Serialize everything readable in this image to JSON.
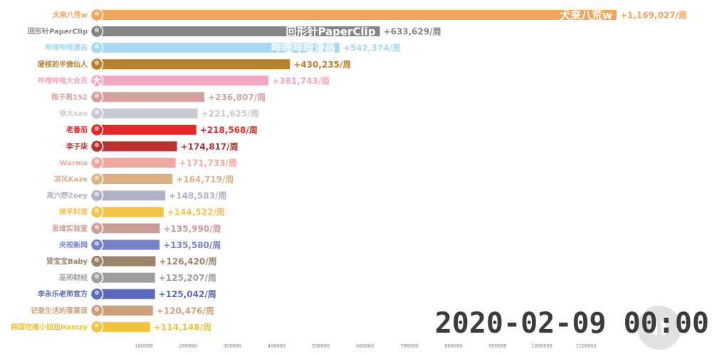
{
  "chart_data": {
    "type": "bar",
    "orientation": "horizontal",
    "categories": [
      "犬来八荒w",
      "回形针PaperClip",
      "哔哩哔哩漫画",
      "硬核的半佛仙人",
      "哔哩哔哩大会员",
      "瓶子君152",
      "徐大sao",
      "老番茄",
      "李子柒",
      "Warma",
      "凉风Kaze",
      "周六野Zoey",
      "绵羊料理",
      "思维实验室",
      "央视新闻",
      "贤宝宝Baby",
      "巫师财经",
      "李永乐老师官方",
      "记录生活的蛋黄派",
      "韩国吃播小姐姐Hamzy"
    ],
    "values": [
      1169027,
      633629,
      542374,
      430235,
      381743,
      236807,
      221625,
      218568,
      174817,
      171733,
      164719,
      148583,
      144522,
      135990,
      135580,
      126420,
      125207,
      125042,
      120476,
      114148
    ],
    "value_labels": [
      "+1,169,027/周",
      "+633,629/周",
      "+542,374/周",
      "+430,235/周",
      "+381,743/周",
      "+236,807/周",
      "+221,625/周",
      "+218,568/周",
      "+174,817/周",
      "+171,733/周",
      "+164,719/周",
      "+148,583/周",
      "+144,522/周",
      "+135,990/周",
      "+135,580/周",
      "+126,420/周",
      "+125,207/周",
      "+125,042/周",
      "+120,476/周",
      "+114,148/周"
    ],
    "bar_inner_labels": [
      "犬来八荒w",
      "回形针PaperClip",
      "哔哩哔哩漫画"
    ],
    "colors": [
      "#f0a65d",
      "#858585",
      "#a9d8f3",
      "#b9822b",
      "#f5a7c6",
      "#d4a19e",
      "#c7c9d3",
      "#e02a2a",
      "#b83131",
      "#f0a9a0",
      "#ddb085",
      "#aeb2c2",
      "#f3c447",
      "#c99e99",
      "#7682c3",
      "#9a8566",
      "#9e9e9e",
      "#5769b8",
      "#ce9f7d",
      "#f1c43b"
    ],
    "avatar_marks": [
      "",
      "",
      "",
      "",
      "大",
      "",
      "",
      "",
      "",
      "",
      "",
      "",
      "",
      "",
      "",
      "",
      "",
      "",
      "",
      ""
    ],
    "xticks": [
      100000,
      200000,
      300000,
      400000,
      500000,
      600000,
      700000,
      800000,
      900000,
      1000000,
      1100000
    ],
    "xtick_labels": [
      "100000",
      "200000",
      "300000",
      "400000",
      "500000",
      "600000",
      "700000",
      "800000",
      "900000",
      "1000000",
      "1100000"
    ],
    "xlim": [
      0,
      1169027
    ],
    "grid": false,
    "legend": "none",
    "title": "",
    "xlabel": "",
    "ylabel": ""
  },
  "timestamp": "2020-02-09 00:00"
}
